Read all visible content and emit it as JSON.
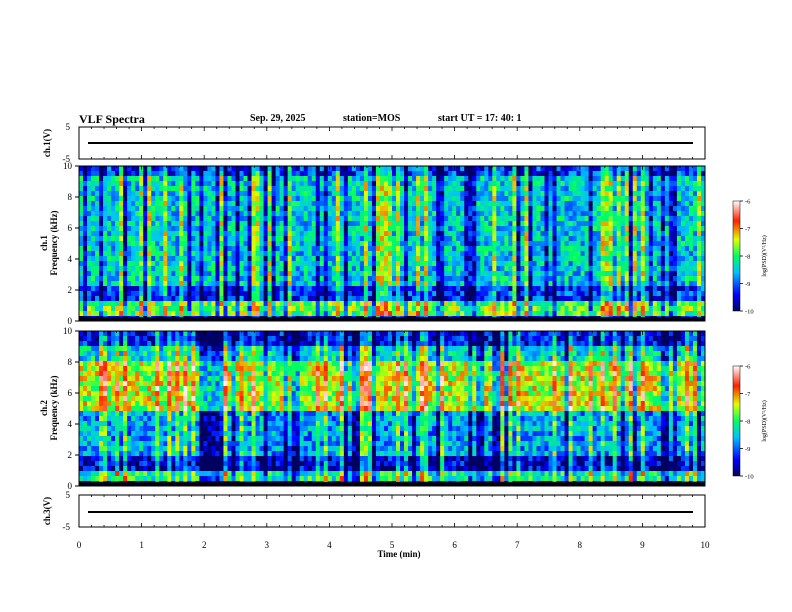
{
  "header": {
    "title": "VLF Spectra",
    "date": "Sep. 29, 2025",
    "station": "station=MOS",
    "start_ut": "start  UT  =    17: 40: 1"
  },
  "chart_data": [
    {
      "type": "line",
      "name_label": "ch.1(V)",
      "ylim": [
        -5,
        5
      ],
      "yticks": [
        "5",
        "-5"
      ],
      "description_values": {
        "baseline": 0
      }
    },
    {
      "type": "heatmap",
      "ylabel": "Frequency (kHz)",
      "channel_label": "ch.1",
      "ylim": [
        0,
        10
      ],
      "yticks": [
        "0",
        "2",
        "4",
        "6",
        "8",
        "10"
      ],
      "colorbar": {
        "label": "log(PSD)(V²/Hz)",
        "range": [
          -10,
          -6
        ],
        "ticks": [
          "-6",
          "-7",
          "-8",
          "-9",
          "-10"
        ]
      },
      "dominant_band_khz": [
        0,
        10
      ]
    },
    {
      "type": "heatmap",
      "ylabel": "Frequency (kHz)",
      "channel_label": "ch.2",
      "ylim": [
        0,
        10
      ],
      "yticks": [
        "0",
        "2",
        "4",
        "6",
        "8",
        "10"
      ],
      "colorbar": {
        "label": "log(PSD)(V²/Hz)",
        "range": [
          -10,
          -6
        ],
        "ticks": [
          "-6",
          "-7",
          "-8",
          "-9",
          "-10"
        ]
      },
      "dominant_band_khz": [
        5,
        8
      ]
    },
    {
      "type": "line",
      "name_label": "ch.3(V)",
      "ylim": [
        -5,
        5
      ],
      "yticks": [
        "5",
        "-5"
      ],
      "description_values": {
        "baseline": 0
      }
    }
  ],
  "xaxis": {
    "label": "Time (min)",
    "xlim": [
      0,
      10
    ],
    "ticks": [
      "0",
      "1",
      "2",
      "3",
      "4",
      "5",
      "6",
      "7",
      "8",
      "9",
      "10"
    ]
  }
}
